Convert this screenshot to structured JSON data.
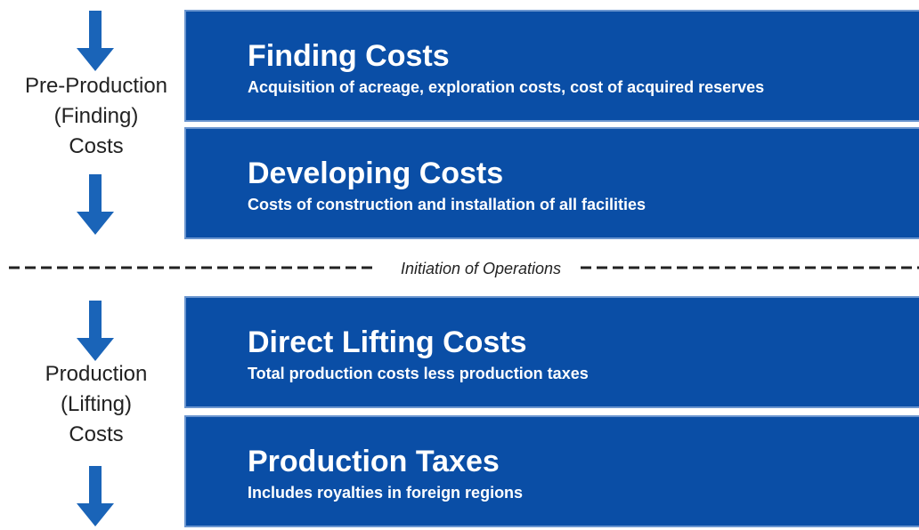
{
  "phases": [
    {
      "label": [
        "Pre-Production",
        "(Finding)",
        "Costs"
      ],
      "boxes": [
        {
          "title": "Finding Costs",
          "description": "Acquisition of acreage,  exploration costs,  cost of acquired reserves"
        },
        {
          "title": "Developing Costs",
          "description": "Costs of construction and installation of all facilities"
        }
      ]
    },
    {
      "label": [
        "Production",
        "(Lifting)",
        "Costs"
      ],
      "boxes": [
        {
          "title": "Direct Lifting Costs",
          "description": "Total production costs less production taxes"
        },
        {
          "title": "Production Taxes",
          "description": "Includes royalties in foreign regions"
        }
      ]
    }
  ],
  "divider": "Initiation of Operations"
}
